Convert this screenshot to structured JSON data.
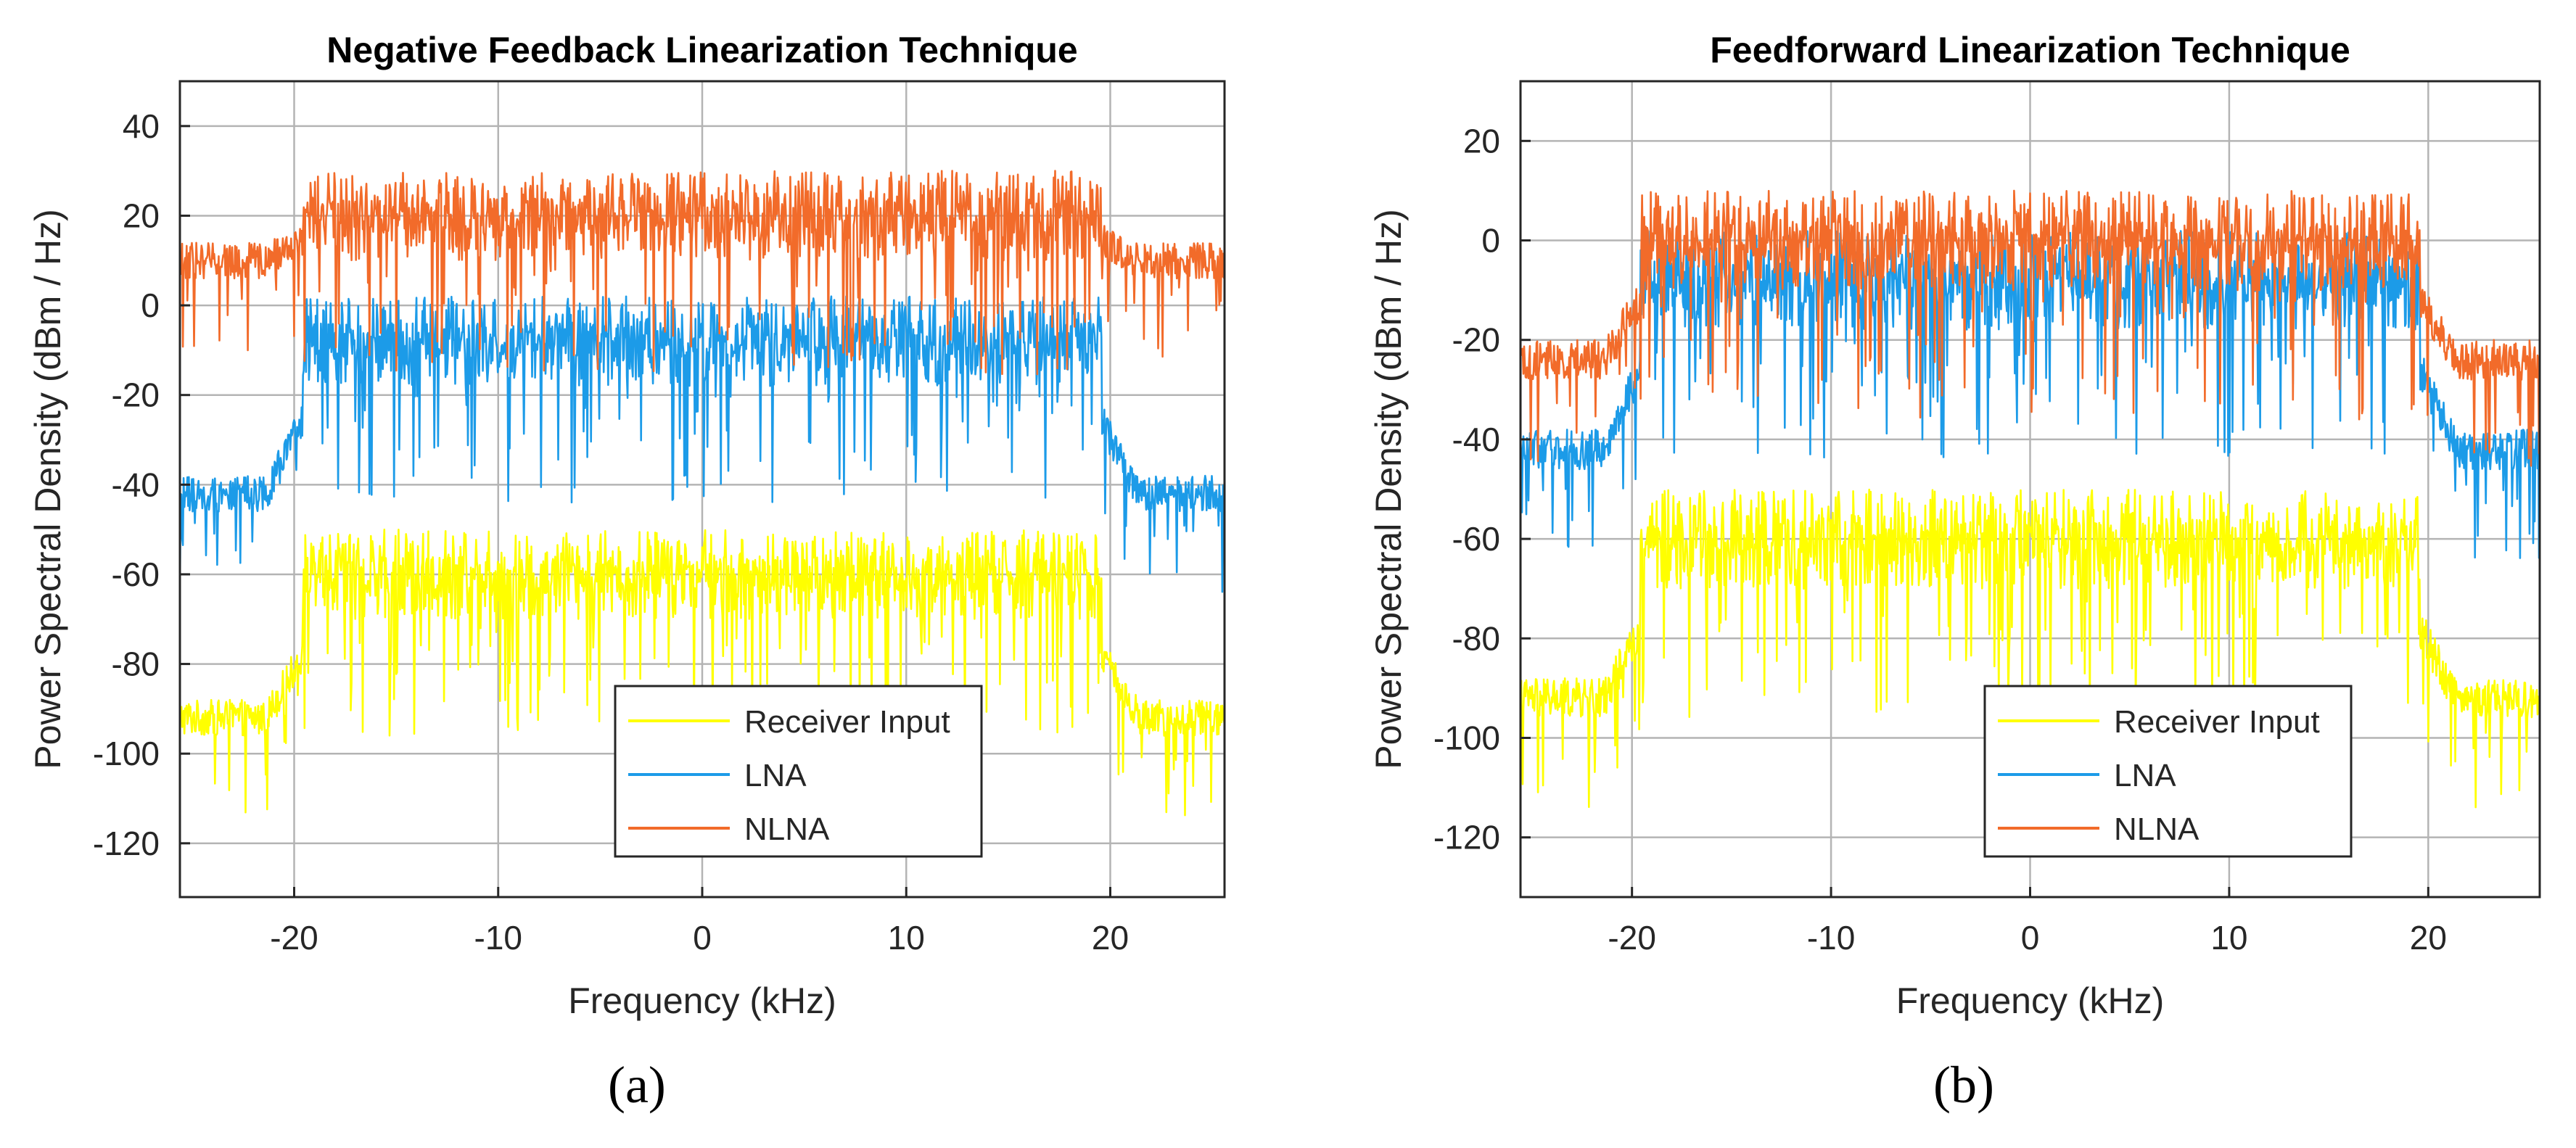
{
  "chart_data": [
    {
      "type": "line",
      "title": "Negative Feedback Linearization Technique",
      "xlabel": "Frequency (kHz)",
      "ylabel": "Power Spectral Density (dBm / Hz)",
      "xlim": [
        -25.6,
        25.6
      ],
      "ylim": [
        -132,
        50
      ],
      "xticks": [
        -20,
        -10,
        0,
        10,
        20
      ],
      "xtick_labels": [
        "-20",
        "-10",
        "0",
        "10",
        "20"
      ],
      "yticks": [
        40,
        20,
        0,
        -20,
        -40,
        -60,
        -80,
        -100,
        -120
      ],
      "ytick_labels": [
        "40",
        "20",
        "0",
        "-20",
        "-40",
        "-60",
        "-80",
        "-100",
        "-120"
      ],
      "grid": true,
      "legend_position": "bottom-right",
      "band_edge_khz": 19.6,
      "series": [
        {
          "name": "Receiver Input",
          "color": "#FFFF00",
          "in_band_level": -60,
          "out_band_level": -92,
          "edge_level": -78
        },
        {
          "name": "LNA",
          "color": "#1C9BE8",
          "in_band_level": -8,
          "out_band_level": -42,
          "edge_level": -26
        },
        {
          "name": "NLNA",
          "color": "#F26B2A",
          "in_band_level": 20,
          "out_band_level": 10,
          "edge_level": 14
        }
      ],
      "panel_label": "(a)"
    },
    {
      "type": "line",
      "title": "Feedforward Linearization Technique",
      "xlabel": "Frequency (kHz)",
      "ylabel": "Power Spectral Density (dBm / Hz)",
      "xlim": [
        -25.6,
        25.6
      ],
      "ylim": [
        -132,
        32
      ],
      "xticks": [
        -20,
        -10,
        0,
        10,
        20
      ],
      "xtick_labels": [
        "-20",
        "-10",
        "0",
        "10",
        "20"
      ],
      "yticks": [
        20,
        0,
        -20,
        -40,
        -60,
        -80,
        -100,
        -120
      ],
      "ytick_labels": [
        "20",
        "0",
        "-20",
        "-40",
        "-60",
        "-80",
        "-100",
        "-120"
      ],
      "grid": true,
      "legend_position": "bottom-right",
      "band_edge_khz": 19.6,
      "series": [
        {
          "name": "Receiver Input",
          "color": "#FFFF00",
          "in_band_level": -60,
          "out_band_level": -92,
          "edge_level": -78
        },
        {
          "name": "LNA",
          "color": "#1C9BE8",
          "in_band_level": -8,
          "out_band_level": -42,
          "edge_level": -26
        },
        {
          "name": "NLNA",
          "color": "#F26B2A",
          "in_band_level": 0,
          "out_band_level": -24,
          "edge_level": -12
        }
      ],
      "panel_label": "(b)"
    }
  ]
}
